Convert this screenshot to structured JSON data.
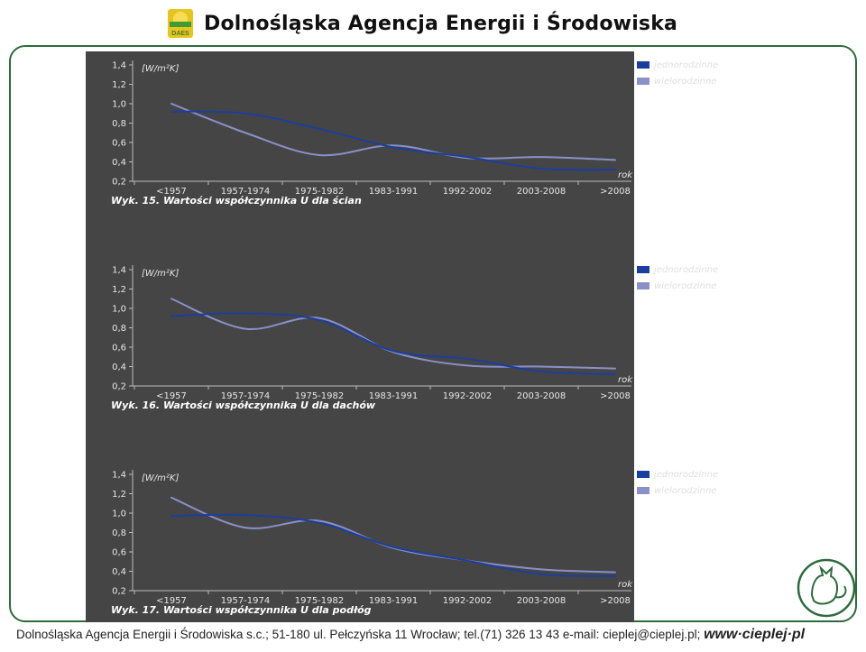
{
  "header": {
    "title": "Dolnośląska Agencja Energii i Środowiska",
    "logo_text": "DAES"
  },
  "footer": {
    "text": "Dolnośląska Agencja Energii i Środowiska s.c.; 51-180 ul. Pełczyńska 11 Wrocław; tel.(71) 326 13 43 e-mail: cieplej@cieplej.pl;",
    "website": "www·cieplej·pl"
  },
  "colors": {
    "jednorodzinne": "#1a3f9c",
    "wielorodzinne": "#8a90c8",
    "background": "#454545"
  },
  "chart_data": [
    {
      "type": "line",
      "caption": "Wyk. 15. Wartości współczynnika U dla ścian",
      "ylabel": "[W/m²K]",
      "xlabel": "rok",
      "categories": [
        "<1957",
        "1957-1974",
        "1975-1982",
        "1983-1991",
        "1992-2002",
        "2003-2008",
        ">2008"
      ],
      "yticks": [
        "1,4",
        "1,2",
        "1,0",
        "0,8",
        "0,6",
        "0,4",
        "0,2"
      ],
      "ylim": [
        0.2,
        1.4
      ],
      "legend_position": "top-right",
      "series": [
        {
          "name": "jednorodzinne",
          "values": [
            0.92,
            0.9,
            0.74,
            0.55,
            0.45,
            0.33,
            0.32
          ]
        },
        {
          "name": "wielorodzinne",
          "values": [
            1.0,
            0.7,
            0.47,
            0.57,
            0.44,
            0.45,
            0.42
          ]
        }
      ]
    },
    {
      "type": "line",
      "caption": "Wyk. 16. Wartości współczynnika U dla dachów",
      "ylabel": "[W/m²K]",
      "xlabel": "rok",
      "categories": [
        "<1957",
        "1957-1974",
        "1975-1982",
        "1983-1991",
        "1992-2002",
        "2003-2008",
        ">2008"
      ],
      "yticks": [
        "1,4",
        "1,2",
        "1,0",
        "0,8",
        "0,6",
        "0,4",
        "0,2"
      ],
      "ylim": [
        0.2,
        1.4
      ],
      "legend_position": "top-right",
      "series": [
        {
          "name": "jednorodzinne",
          "values": [
            0.92,
            0.95,
            0.88,
            0.56,
            0.48,
            0.35,
            0.32
          ]
        },
        {
          "name": "wielorodzinne",
          "values": [
            1.1,
            0.79,
            0.9,
            0.55,
            0.41,
            0.4,
            0.38
          ]
        }
      ]
    },
    {
      "type": "line",
      "caption": "Wyk. 17. Wartości współczynnika U dla podłóg",
      "ylabel": "[W/m²K]",
      "xlabel": "rok",
      "categories": [
        "<1957",
        "1957-1974",
        "1975-1982",
        "1983-1991",
        "1992-2002",
        "2003-2008",
        ">2008"
      ],
      "yticks": [
        "1,4",
        "1,2",
        "1,0",
        "0,8",
        "0,6",
        "0,4",
        "0,2"
      ],
      "ylim": [
        0.2,
        1.4
      ],
      "legend_position": "top-right",
      "series": [
        {
          "name": "jednorodzinne",
          "values": [
            0.97,
            0.98,
            0.9,
            0.65,
            0.51,
            0.37,
            0.35
          ]
        },
        {
          "name": "wielorodzinne",
          "values": [
            1.16,
            0.85,
            0.92,
            0.64,
            0.51,
            0.42,
            0.39
          ]
        }
      ]
    }
  ]
}
